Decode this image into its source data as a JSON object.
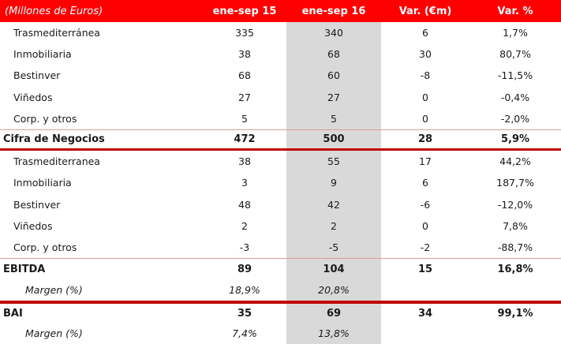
{
  "table": {
    "title": "(Millones de Euros)",
    "columns": [
      "ene-sep 15",
      "ene-sep 16",
      "Var. (€m)",
      "Var. %"
    ],
    "highlighted_column": "ene-sep 16",
    "rows": [
      {
        "label": "Trasmediterránea",
        "ene_sep_15": "335",
        "ene_sep_16": "340",
        "var_eur": "6",
        "var_pct": "1,7%",
        "type": "detail",
        "rules": []
      },
      {
        "label": "Inmobiliaria",
        "ene_sep_15": "38",
        "ene_sep_16": "68",
        "var_eur": "30",
        "var_pct": "80,7%",
        "type": "detail",
        "rules": []
      },
      {
        "label": "Bestinver",
        "ene_sep_15": "68",
        "ene_sep_16": "60",
        "var_eur": "-8",
        "var_pct": "-11,5%",
        "type": "detail",
        "rules": []
      },
      {
        "label": "Viñedos",
        "ene_sep_15": "27",
        "ene_sep_16": "27",
        "var_eur": "0",
        "var_pct": "-0,4%",
        "type": "detail",
        "rules": []
      },
      {
        "label": "Corp. y otros",
        "ene_sep_15": "5",
        "ene_sep_16": "5",
        "var_eur": "0",
        "var_pct": "-2,0%",
        "type": "detail",
        "rules": []
      },
      {
        "label": "Cifra de Negocios",
        "ene_sep_15": "472",
        "ene_sep_16": "500",
        "var_eur": "28",
        "var_pct": "5,9%",
        "type": "total",
        "rules": [
          "top-thin",
          "bottom-thick"
        ]
      },
      {
        "label": "Trasmediterranea",
        "ene_sep_15": "38",
        "ene_sep_16": "55",
        "var_eur": "17",
        "var_pct": "44,2%",
        "type": "detail",
        "rules": []
      },
      {
        "label": "Inmobiliaria",
        "ene_sep_15": "3",
        "ene_sep_16": "9",
        "var_eur": "6",
        "var_pct": "187,7%",
        "type": "detail",
        "rules": []
      },
      {
        "label": "Bestinver",
        "ene_sep_15": "48",
        "ene_sep_16": "42",
        "var_eur": "-6",
        "var_pct": "-12,0%",
        "type": "detail",
        "rules": []
      },
      {
        "label": "Viñedos",
        "ene_sep_15": "2",
        "ene_sep_16": "2",
        "var_eur": "0",
        "var_pct": "7,8%",
        "type": "detail",
        "rules": []
      },
      {
        "label": "Corp. y otros",
        "ene_sep_15": "-3",
        "ene_sep_16": "-5",
        "var_eur": "-2",
        "var_pct": "-88,7%",
        "type": "detail",
        "rules": []
      },
      {
        "label": "EBITDA",
        "ene_sep_15": "89",
        "ene_sep_16": "104",
        "var_eur": "15",
        "var_pct": "16,8%",
        "type": "total",
        "rules": [
          "top-thin"
        ]
      },
      {
        "label": "Margen (%)",
        "ene_sep_15": "18,9%",
        "ene_sep_16": "20,8%",
        "var_eur": "",
        "var_pct": "",
        "type": "margin",
        "rules": []
      },
      {
        "label": "BAI",
        "ene_sep_15": "35",
        "ene_sep_16": "69",
        "var_eur": "34",
        "var_pct": "99,1%",
        "type": "total",
        "rules": [
          "top-thick"
        ]
      },
      {
        "label": "Margen (%)",
        "ene_sep_15": "7,4%",
        "ene_sep_16": "13,8%",
        "var_eur": "",
        "var_pct": "",
        "type": "margin",
        "rules": []
      }
    ]
  },
  "colors": {
    "header_background": "#fe0000",
    "header_text": "#ffffff",
    "highlight_column_background": "#d9d9d9",
    "rule_thick": "#c00000",
    "rule_thin": "#e29a9a",
    "body_text": "#1a1a1a"
  }
}
